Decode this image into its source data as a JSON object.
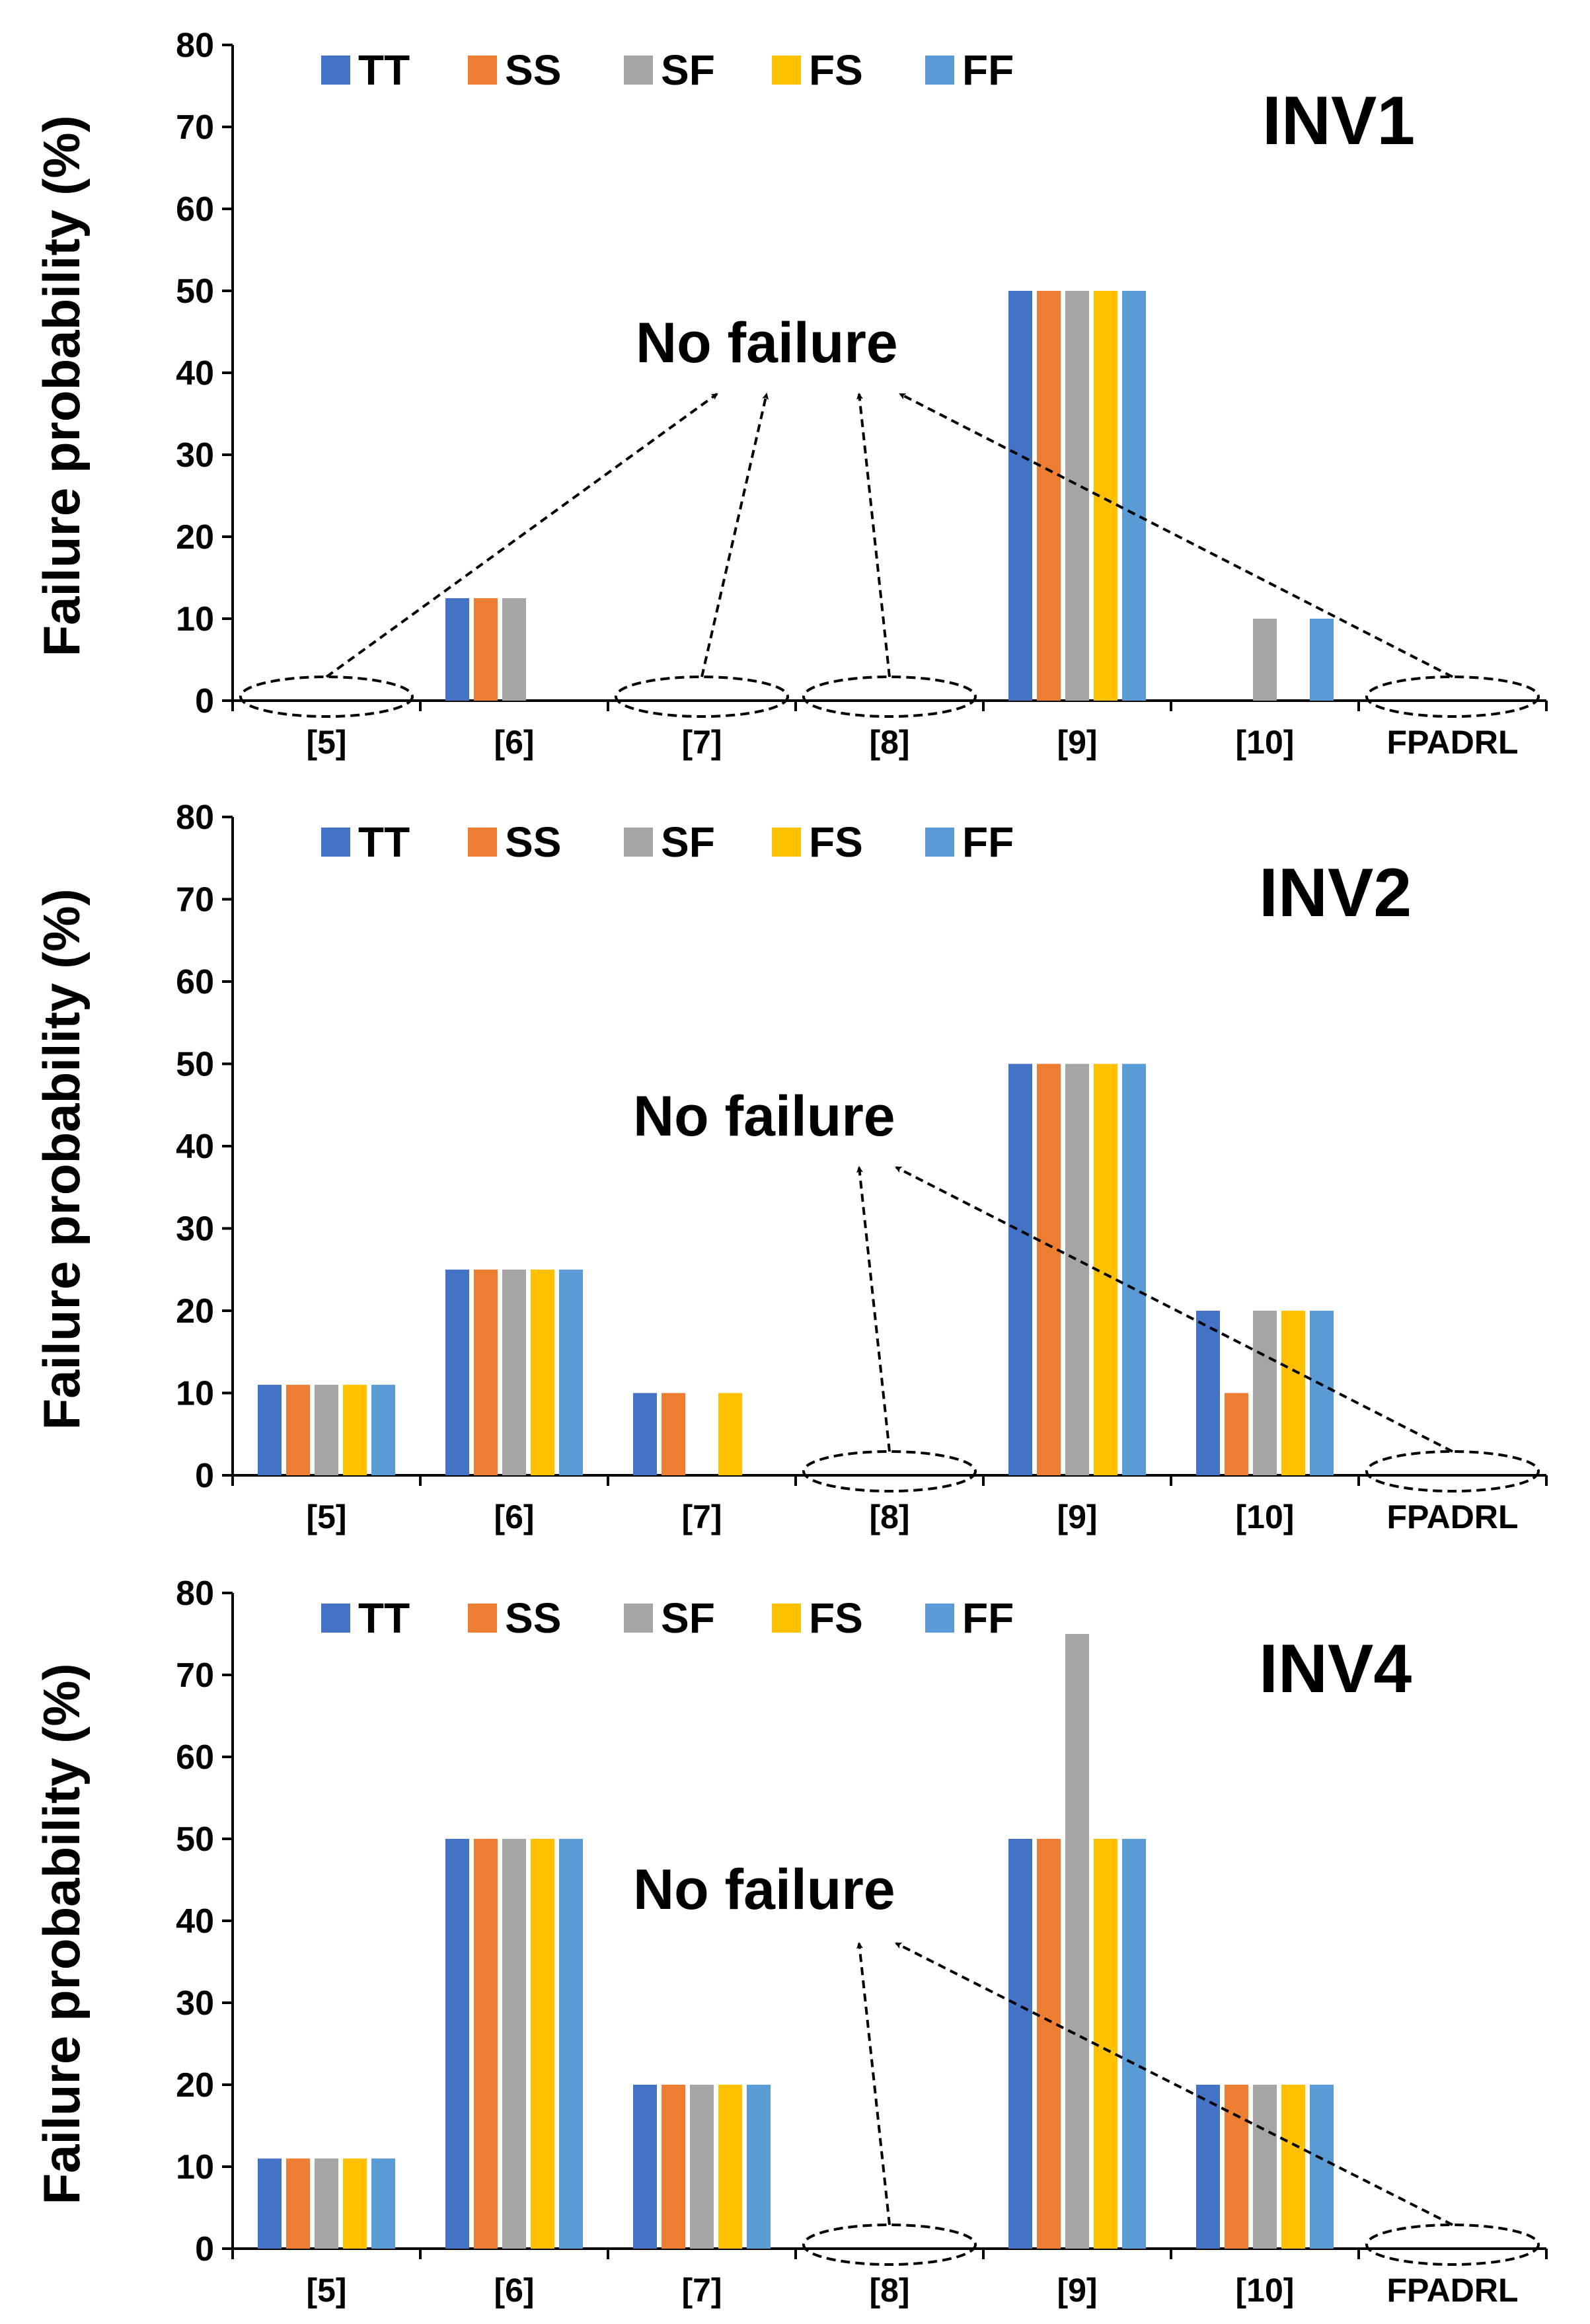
{
  "chart_data": [
    {
      "type": "bar",
      "title": "INV1",
      "ylabel": "Failure probability (%)",
      "xlabel": "",
      "ylim": [
        0,
        80
      ],
      "yticks": [
        0,
        10,
        20,
        30,
        40,
        50,
        60,
        70,
        80
      ],
      "legend_position": "top",
      "categories": [
        "[5]",
        "[6]",
        "[7]",
        "[8]",
        "[9]",
        "[10]",
        "FPADRL"
      ],
      "series": [
        {
          "name": "TT",
          "color": "#4472C4",
          "values": [
            0,
            12.5,
            0,
            0,
            50,
            0,
            0
          ]
        },
        {
          "name": "SS",
          "color": "#ED7D31",
          "values": [
            0,
            12.5,
            0,
            0,
            50,
            0,
            0
          ]
        },
        {
          "name": "SF",
          "color": "#A5A5A5",
          "values": [
            0,
            12.5,
            0,
            0,
            50,
            10,
            0
          ]
        },
        {
          "name": "FS",
          "color": "#FFC000",
          "values": [
            0,
            0,
            0,
            0,
            50,
            0,
            0
          ]
        },
        {
          "name": "FF",
          "color": "#5B9BD5",
          "values": [
            0,
            0,
            0,
            0,
            50,
            10,
            0
          ]
        }
      ],
      "annotation": {
        "text": "No failure",
        "targets": [
          "[5]",
          "[7]",
          "[8]",
          "FPADRL"
        ]
      }
    },
    {
      "type": "bar",
      "title": "INV2",
      "ylabel": "Failure probability (%)",
      "xlabel": "",
      "ylim": [
        0,
        80
      ],
      "yticks": [
        0,
        10,
        20,
        30,
        40,
        50,
        60,
        70,
        80
      ],
      "legend_position": "top",
      "categories": [
        "[5]",
        "[6]",
        "[7]",
        "[8]",
        "[9]",
        "[10]",
        "FPADRL"
      ],
      "series": [
        {
          "name": "TT",
          "color": "#4472C4",
          "values": [
            11,
            25,
            10,
            0,
            50,
            20,
            0
          ]
        },
        {
          "name": "SS",
          "color": "#ED7D31",
          "values": [
            11,
            25,
            10,
            0,
            50,
            10,
            0
          ]
        },
        {
          "name": "SF",
          "color": "#A5A5A5",
          "values": [
            11,
            25,
            0,
            0,
            50,
            20,
            0
          ]
        },
        {
          "name": "FS",
          "color": "#FFC000",
          "values": [
            11,
            25,
            10,
            0,
            50,
            20,
            0
          ]
        },
        {
          "name": "FF",
          "color": "#5B9BD5",
          "values": [
            11,
            25,
            0,
            0,
            50,
            20,
            0
          ]
        }
      ],
      "annotation": {
        "text": "No failure",
        "targets": [
          "[8]",
          "FPADRL"
        ]
      }
    },
    {
      "type": "bar",
      "title": "INV4",
      "ylabel": "Failure probability (%)",
      "xlabel": "",
      "ylim": [
        0,
        80
      ],
      "yticks": [
        0,
        10,
        20,
        30,
        40,
        50,
        60,
        70,
        80
      ],
      "legend_position": "top",
      "categories": [
        "[5]",
        "[6]",
        "[7]",
        "[8]",
        "[9]",
        "[10]",
        "FPADRL"
      ],
      "series": [
        {
          "name": "TT",
          "color": "#4472C4",
          "values": [
            11,
            50,
            20,
            0,
            50,
            20,
            0
          ]
        },
        {
          "name": "SS",
          "color": "#ED7D31",
          "values": [
            11,
            50,
            20,
            0,
            50,
            20,
            0
          ]
        },
        {
          "name": "SF",
          "color": "#A5A5A5",
          "values": [
            11,
            50,
            20,
            0,
            75,
            20,
            0
          ]
        },
        {
          "name": "FS",
          "color": "#FFC000",
          "values": [
            11,
            50,
            20,
            0,
            50,
            20,
            0
          ]
        },
        {
          "name": "FF",
          "color": "#5B9BD5",
          "values": [
            11,
            50,
            20,
            0,
            50,
            20,
            0
          ]
        }
      ],
      "annotation": {
        "text": "No failure",
        "targets": [
          "[8]",
          "FPADRL"
        ]
      }
    }
  ]
}
